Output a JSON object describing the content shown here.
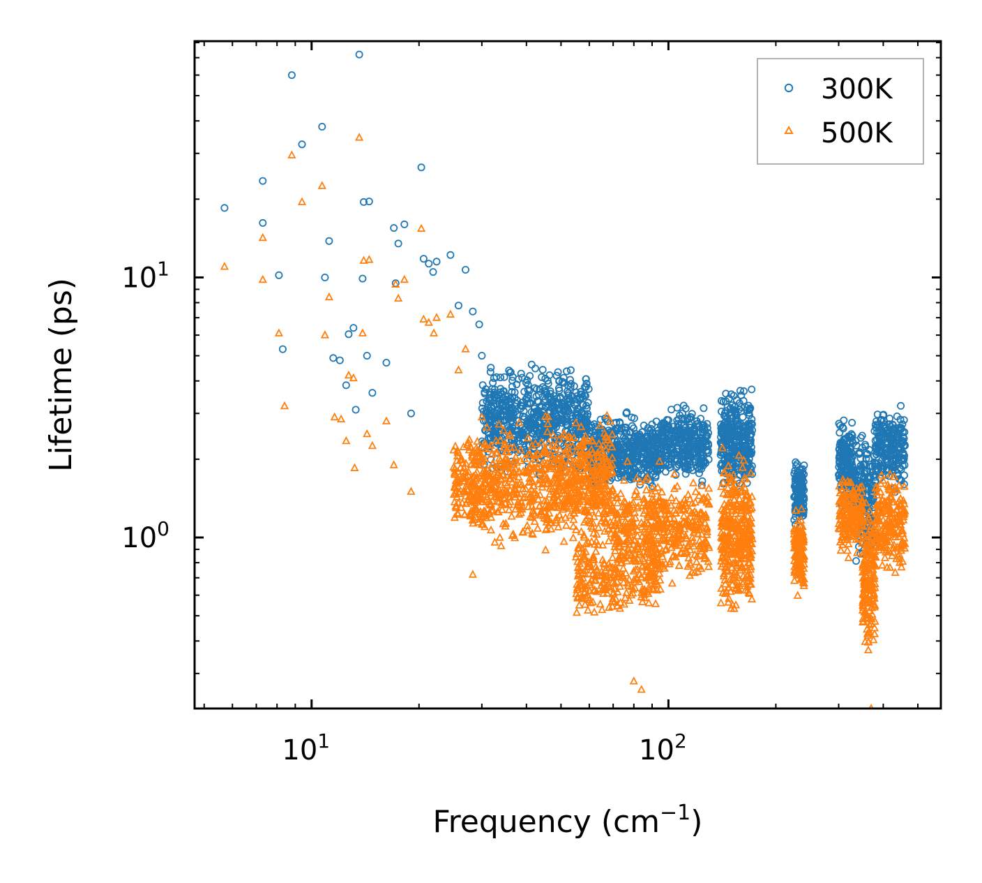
{
  "chart_data": {
    "type": "scatter",
    "title": "",
    "xlabel": "Frequency (cm",
    "xlabel_sup": "−1",
    "xlabel_close": ")",
    "ylabel": "Lifetime (ps)",
    "xscale": "log",
    "yscale": "log",
    "xlim": [
      4.7,
      580
    ],
    "ylim": [
      0.22,
      81
    ],
    "x_tick_labels": [
      {
        "value": 10,
        "base": "10",
        "exp": "1"
      },
      {
        "value": 100,
        "base": "10",
        "exp": "2"
      }
    ],
    "y_tick_labels": [
      {
        "value": 1,
        "base": "10",
        "exp": "0"
      },
      {
        "value": 10,
        "base": "10",
        "exp": "1"
      }
    ],
    "legend_position": "top-right",
    "series": [
      {
        "name": "300K",
        "color": "#1f77b4",
        "marker": "circle",
        "sample_points": [
          [
            5.7,
            18.5
          ],
          [
            7.3,
            23.5
          ],
          [
            7.3,
            16.2
          ],
          [
            8.1,
            10.2
          ],
          [
            8.3,
            5.3
          ],
          [
            8.8,
            60
          ],
          [
            9.4,
            32.5
          ],
          [
            10.7,
            38
          ],
          [
            10.9,
            10.0
          ],
          [
            11.2,
            13.8
          ],
          [
            11.5,
            4.9
          ],
          [
            12.0,
            4.8
          ],
          [
            12.5,
            3.85
          ],
          [
            12.7,
            6.05
          ],
          [
            13.1,
            6.4
          ],
          [
            13.3,
            3.1
          ],
          [
            13.6,
            72
          ],
          [
            13.9,
            9.9
          ],
          [
            14.0,
            19.5
          ],
          [
            14.5,
            19.6
          ],
          [
            14.3,
            5.0
          ],
          [
            14.8,
            3.6
          ],
          [
            16.2,
            4.7
          ],
          [
            17.0,
            15.5
          ],
          [
            17.2,
            9.5
          ],
          [
            17.5,
            13.5
          ],
          [
            18.2,
            16.0
          ],
          [
            19.0,
            3.0
          ],
          [
            20.3,
            26.5
          ],
          [
            20.6,
            11.8
          ],
          [
            21.3,
            11.3
          ],
          [
            21.9,
            10.5
          ],
          [
            22.4,
            11.5
          ],
          [
            24.5,
            12.2
          ],
          [
            25.8,
            7.8
          ],
          [
            27.0,
            10.7
          ],
          [
            28.3,
            7.4
          ],
          [
            29.5,
            6.6
          ],
          [
            30.0,
            5.0
          ],
          [
            31.8,
            4.5
          ]
        ],
        "clusters": [
          {
            "x": [
              30,
              60
            ],
            "y": [
              1.6,
              5.0
            ],
            "n": 650
          },
          {
            "x": [
              60,
              95
            ],
            "y": [
              1.4,
              3.2
            ],
            "n": 480
          },
          {
            "x": [
              95,
              130
            ],
            "y": [
              1.5,
              3.5
            ],
            "n": 300
          },
          {
            "x": [
              140,
              172
            ],
            "y": [
              1.4,
              4.1
            ],
            "n": 300
          },
          {
            "x": [
              225,
              240
            ],
            "y": [
              1.0,
              2.2
            ],
            "n": 130
          },
          {
            "x": [
              300,
              330
            ],
            "y": [
              1.2,
              3.0
            ],
            "n": 160
          },
          {
            "x": [
              330,
              380
            ],
            "y": [
              0.7,
              3.0
            ],
            "n": 200
          },
          {
            "x": [
              380,
              460
            ],
            "y": [
              1.4,
              3.5
            ],
            "n": 220
          }
        ]
      },
      {
        "name": "500K",
        "color": "#ff7f0e",
        "marker": "triangle",
        "sample_points": [
          [
            5.7,
            11.0
          ],
          [
            7.3,
            14.2
          ],
          [
            7.3,
            9.8
          ],
          [
            8.1,
            6.1
          ],
          [
            8.4,
            3.2
          ],
          [
            8.8,
            29.5
          ],
          [
            9.4,
            19.5
          ],
          [
            10.7,
            22.5
          ],
          [
            10.9,
            6.0
          ],
          [
            11.2,
            8.4
          ],
          [
            11.6,
            2.9
          ],
          [
            12.1,
            2.85
          ],
          [
            12.5,
            2.35
          ],
          [
            12.7,
            4.2
          ],
          [
            13.1,
            4.1
          ],
          [
            13.2,
            1.85
          ],
          [
            13.6,
            34.5
          ],
          [
            13.9,
            6.1
          ],
          [
            14.0,
            11.6
          ],
          [
            14.5,
            11.7
          ],
          [
            14.3,
            2.5
          ],
          [
            14.8,
            2.25
          ],
          [
            16.2,
            2.8
          ],
          [
            17.0,
            1.9
          ],
          [
            17.2,
            9.4
          ],
          [
            17.5,
            8.3
          ],
          [
            18.2,
            9.8
          ],
          [
            19.0,
            1.5
          ],
          [
            20.3,
            15.4
          ],
          [
            20.6,
            6.9
          ],
          [
            21.3,
            6.7
          ],
          [
            22.0,
            6.1
          ],
          [
            22.4,
            7.0
          ],
          [
            24.5,
            7.2
          ],
          [
            25.8,
            4.4
          ],
          [
            27.0,
            5.3
          ],
          [
            28.3,
            0.72
          ],
          [
            30.0,
            2.9
          ],
          [
            80,
            0.28
          ],
          [
            84,
            0.26
          ],
          [
            370,
            0.22
          ]
        ],
        "clusters": [
          {
            "x": [
              25,
              45
            ],
            "y": [
              0.85,
              3.0
            ],
            "n": 450
          },
          {
            "x": [
              45,
              70
            ],
            "y": [
              0.8,
              3.2
            ],
            "n": 450
          },
          {
            "x": [
              55,
              95
            ],
            "y": [
              0.45,
              1.1
            ],
            "n": 250
          },
          {
            "x": [
              70,
              130
            ],
            "y": [
              0.6,
              2.0
            ],
            "n": 450
          },
          {
            "x": [
              140,
              172
            ],
            "y": [
              0.45,
              2.4
            ],
            "n": 350
          },
          {
            "x": [
              225,
              240
            ],
            "y": [
              0.55,
              1.35
            ],
            "n": 140
          },
          {
            "x": [
              300,
              350
            ],
            "y": [
              0.8,
              1.8
            ],
            "n": 180
          },
          {
            "x": [
              350,
              380
            ],
            "y": [
              0.3,
              1.6
            ],
            "n": 180
          },
          {
            "x": [
              380,
              460
            ],
            "y": [
              0.65,
              2.0
            ],
            "n": 200
          }
        ]
      }
    ]
  }
}
